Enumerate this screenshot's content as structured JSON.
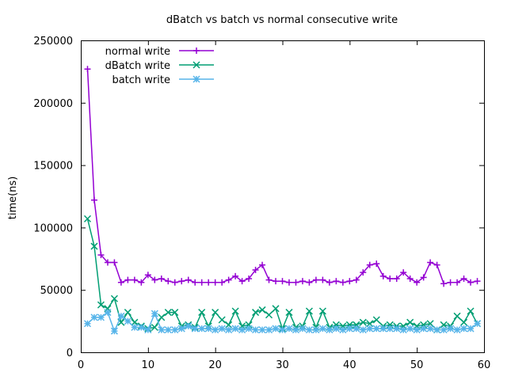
{
  "chart_data": {
    "type": "line",
    "title": "dBatch vs batch vs normal consecutive write",
    "xlabel": "",
    "ylabel": "time(ns)",
    "xlim": [
      0,
      60
    ],
    "ylim": [
      0,
      250000
    ],
    "xticks": [
      0,
      10,
      20,
      30,
      40,
      50,
      60
    ],
    "yticks": [
      0,
      50000,
      100000,
      150000,
      200000,
      250000
    ],
    "grid": false,
    "legend_position": "top-left",
    "series": [
      {
        "name": "normal write",
        "color": "#9400d3",
        "marker": "plus",
        "x": [
          1,
          2,
          3,
          4,
          5,
          6,
          7,
          8,
          9,
          10,
          11,
          12,
          13,
          14,
          15,
          16,
          17,
          18,
          19,
          20,
          21,
          22,
          23,
          24,
          25,
          26,
          27,
          28,
          29,
          30,
          31,
          32,
          33,
          34,
          35,
          36,
          37,
          38,
          39,
          40,
          41,
          42,
          43,
          44,
          45,
          46,
          47,
          48,
          49,
          50,
          51,
          52,
          53,
          54,
          55,
          56,
          57,
          58,
          59
        ],
        "y": [
          227000,
          122000,
          78000,
          72000,
          72000,
          56000,
          58000,
          58000,
          56000,
          62000,
          58000,
          59000,
          57000,
          56000,
          57000,
          58000,
          56000,
          56000,
          56000,
          56000,
          56000,
          58000,
          61000,
          57000,
          59000,
          66000,
          70000,
          58000,
          57000,
          57000,
          56000,
          56000,
          57000,
          56000,
          58000,
          58000,
          56000,
          57000,
          56000,
          57000,
          58000,
          64000,
          70000,
          71000,
          61000,
          59000,
          59000,
          64000,
          59000,
          56000,
          60000,
          72000,
          70000,
          55000,
          56000,
          56000,
          59000,
          56000,
          57000
        ]
      },
      {
        "name": "dBatch write",
        "color": "#009e73",
        "marker": "x",
        "x": [
          1,
          2,
          3,
          4,
          5,
          6,
          7,
          8,
          9,
          10,
          11,
          12,
          13,
          14,
          15,
          16,
          17,
          18,
          19,
          20,
          21,
          22,
          23,
          24,
          25,
          26,
          27,
          28,
          29,
          30,
          31,
          32,
          33,
          34,
          35,
          36,
          37,
          38,
          39,
          40,
          41,
          42,
          43,
          44,
          45,
          46,
          47,
          48,
          49,
          50,
          51,
          52,
          53,
          54,
          55,
          56,
          57,
          58,
          59
        ],
        "y": [
          107000,
          85000,
          38000,
          35000,
          43000,
          24000,
          32000,
          24000,
          21000,
          19000,
          20000,
          28000,
          32000,
          32000,
          21000,
          22000,
          20000,
          32000,
          21000,
          32000,
          26000,
          22000,
          33000,
          21000,
          22000,
          32000,
          34000,
          30000,
          35000,
          19000,
          32000,
          20000,
          21000,
          33000,
          20000,
          33000,
          20000,
          22000,
          21000,
          22000,
          22000,
          24000,
          23000,
          26000,
          21000,
          22000,
          21000,
          21000,
          24000,
          21000,
          22000,
          23000,
          18000,
          22000,
          21000,
          29000,
          24000,
          33000,
          23000
        ]
      },
      {
        "name": "batch write",
        "color": "#56b4e9",
        "marker": "star",
        "x": [
          1,
          2,
          3,
          4,
          5,
          6,
          7,
          8,
          9,
          10,
          11,
          12,
          13,
          14,
          15,
          16,
          17,
          18,
          19,
          20,
          21,
          22,
          23,
          24,
          25,
          26,
          27,
          28,
          29,
          30,
          31,
          32,
          33,
          34,
          35,
          36,
          37,
          38,
          39,
          40,
          41,
          42,
          43,
          44,
          45,
          46,
          47,
          48,
          49,
          50,
          51,
          52,
          53,
          54,
          55,
          56,
          57,
          58,
          59
        ],
        "y": [
          23000,
          28000,
          28000,
          32000,
          17000,
          29000,
          25000,
          20000,
          20000,
          18000,
          31000,
          18000,
          18000,
          18000,
          19000,
          21000,
          19000,
          19000,
          19000,
          18000,
          19000,
          18000,
          19000,
          18000,
          19000,
          18000,
          18000,
          18000,
          19000,
          18000,
          19000,
          18000,
          19000,
          18000,
          18000,
          19000,
          18000,
          19000,
          18000,
          19000,
          19000,
          18000,
          19000,
          19000,
          19000,
          19000,
          19000,
          18000,
          19000,
          18000,
          19000,
          19000,
          18000,
          18000,
          19000,
          18000,
          19000,
          19000,
          23000
        ]
      }
    ]
  }
}
